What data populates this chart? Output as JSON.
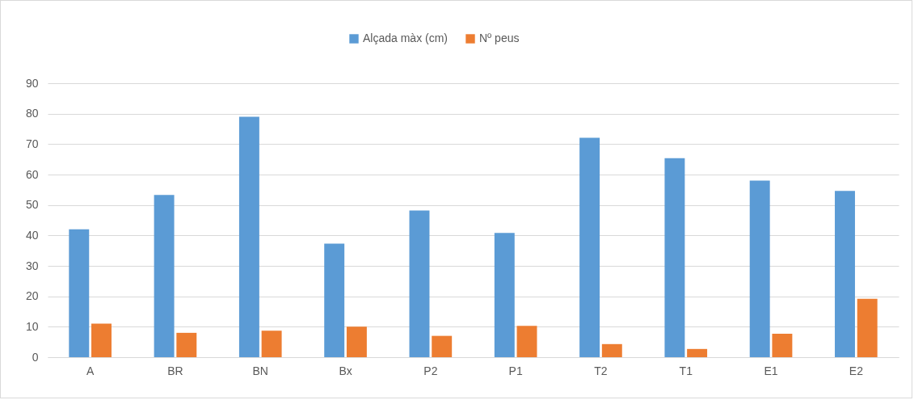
{
  "chart_data": {
    "type": "bar",
    "categories": [
      "A",
      "BR",
      "BN",
      "Bx",
      "P2",
      "P1",
      "T2",
      "T1",
      "E1",
      "E2"
    ],
    "series": [
      {
        "name": "Alçada màx (cm)",
        "color": "#5b9bd5",
        "values": [
          42,
          53.3,
          79,
          37.3,
          48.2,
          40.8,
          72.1,
          65.4,
          58,
          54.6
        ]
      },
      {
        "name": "Nº peus",
        "color": "#ed7d31",
        "values": [
          11,
          8,
          8.7,
          10,
          7,
          10.3,
          4.3,
          2.7,
          7.7,
          19.2
        ]
      }
    ],
    "ylim": [
      0,
      90
    ],
    "yticks": [
      0,
      10,
      20,
      30,
      40,
      50,
      60,
      70,
      80,
      90
    ],
    "grid": "y",
    "legend": "top"
  }
}
